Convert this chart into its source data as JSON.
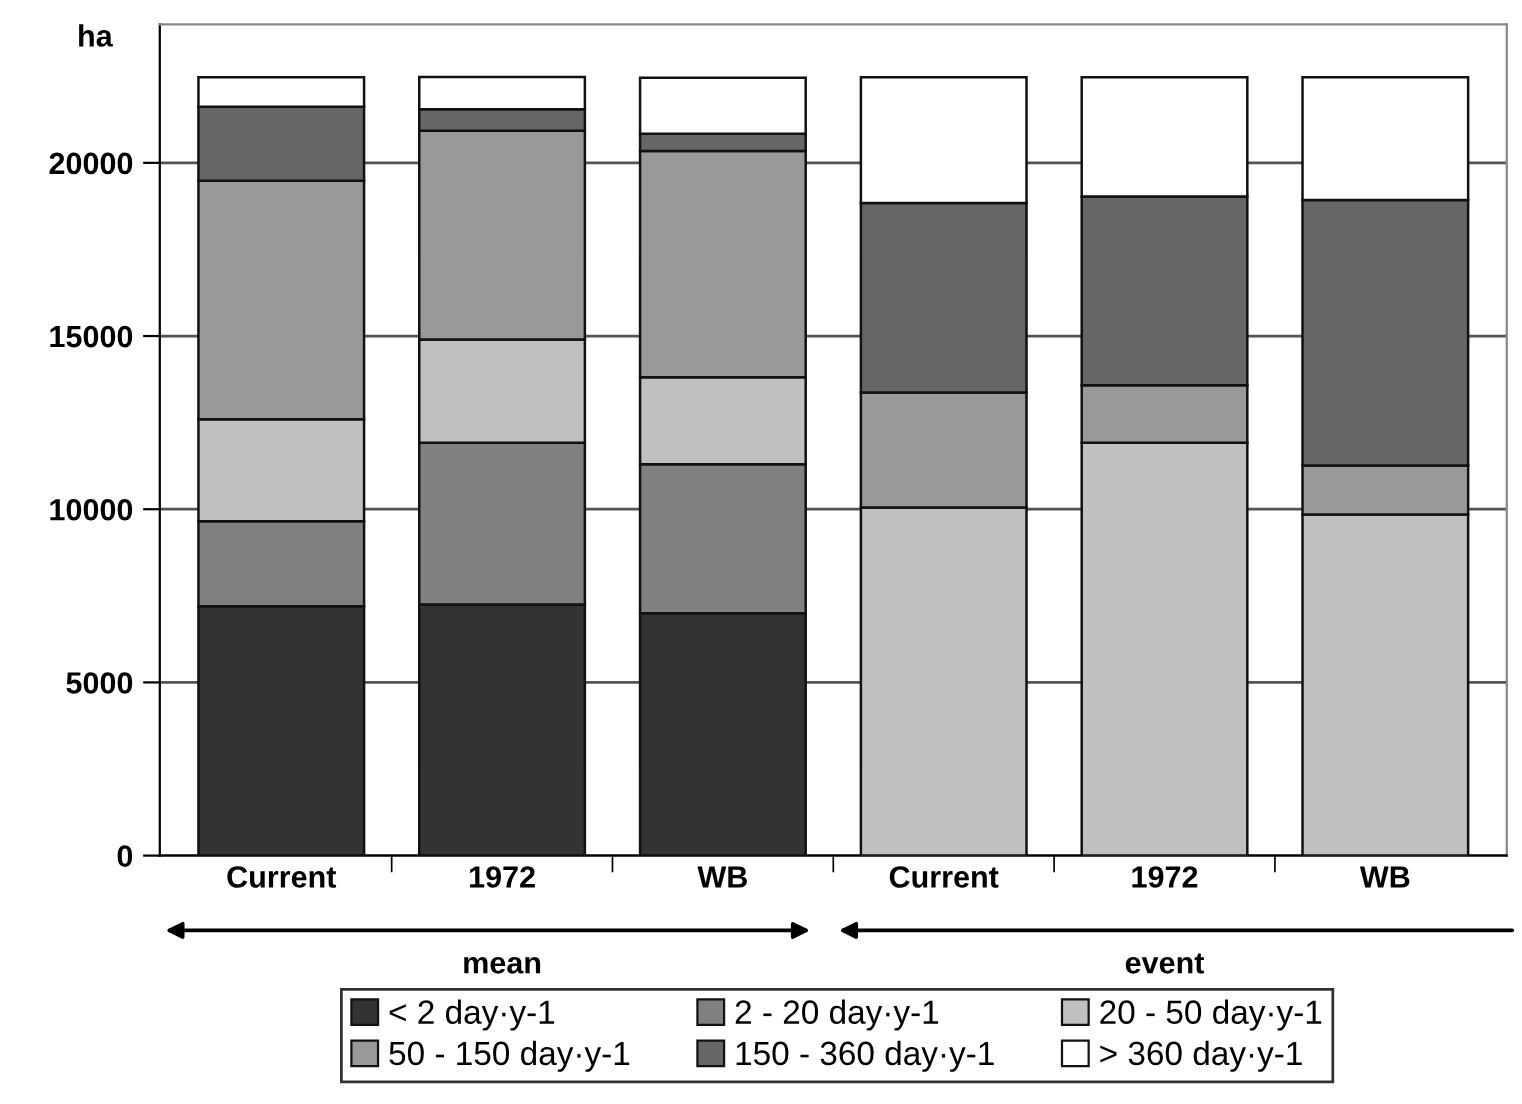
{
  "chart_data": {
    "type": "bar",
    "stacked": true,
    "ylabel": "ha",
    "categories": [
      "Current",
      "1972",
      "WB",
      "Current",
      "1972",
      "WB"
    ],
    "series": [
      {
        "name": "< 2 day·y-1",
        "color": "#333333",
        "values": [
          7200,
          7250,
          7000,
          null,
          null,
          null
        ]
      },
      {
        "name": "2 - 20 day·y-1",
        "color": "#808080",
        "values": [
          2450,
          4670,
          4300,
          null,
          null,
          null
        ]
      },
      {
        "name": "20 - 50 day·y-1",
        "color": "#c0c0c0",
        "values": [
          2950,
          2980,
          2510,
          10050,
          11920,
          9850
        ]
      },
      {
        "name": "50 - 150 day·y-1",
        "color": "#999999",
        "values": [
          6880,
          6030,
          6530,
          3320,
          1660,
          1410
        ]
      },
      {
        "name": "150 - 360 day·y-1",
        "color": "#666666",
        "values": [
          2140,
          620,
          500,
          5470,
          5450,
          7670
        ]
      },
      {
        "name": "> 360 day·y-1",
        "color": "#ffffff",
        "values": [
          850,
          930,
          1620,
          3630,
          3440,
          3540
        ]
      }
    ],
    "ylim": [
      0,
      24000
    ],
    "yticks": [
      0,
      5000,
      10000,
      15000,
      20000
    ],
    "grid": "y",
    "legend": "bottom",
    "annotations": [
      "mean",
      "event"
    ]
  }
}
